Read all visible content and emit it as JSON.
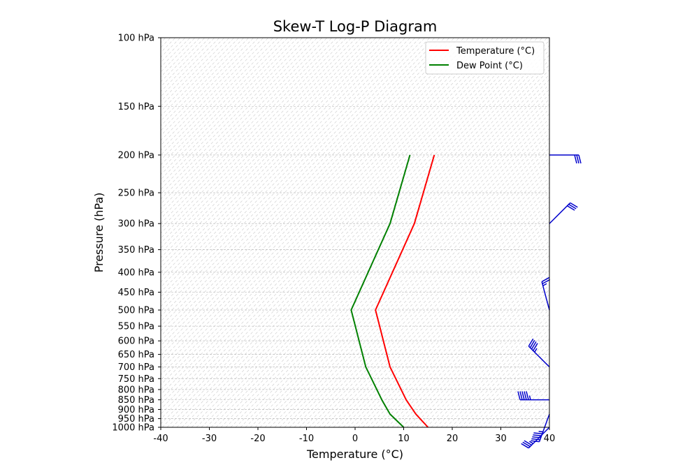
{
  "chart_data": {
    "type": "line",
    "title": "Skew-T Log-P Diagram",
    "xlabel": "Temperature (°C)",
    "ylabel": "Pressure (hPa)",
    "xlim": [
      -40,
      40
    ],
    "ylim": [
      1000,
      100
    ],
    "y_scale": "log",
    "grid": true,
    "x_ticks": [
      -40,
      -30,
      -20,
      -10,
      0,
      10,
      20,
      30,
      40
    ],
    "x_tick_labels": [
      "-40",
      "-30",
      "-20",
      "-10",
      "0",
      "10",
      "20",
      "30",
      "40"
    ],
    "y_ticks": [
      100,
      150,
      200,
      250,
      300,
      350,
      400,
      450,
      500,
      550,
      600,
      650,
      700,
      750,
      800,
      850,
      900,
      950,
      1000
    ],
    "y_tick_labels": [
      "100 hPa",
      "150 hPa",
      "200 hPa",
      "250 hPa",
      "300 hPa",
      "350 hPa",
      "400 hPa",
      "450 hPa",
      "500 hPa",
      "550 hPa",
      "600 hPa",
      "650 hPa",
      "700 hPa",
      "750 hPa",
      "800 hPa",
      "850 hPa",
      "900 hPa",
      "950 hPa",
      "1000 hPa"
    ],
    "legend_position": "top-right",
    "series": [
      {
        "name": "Temperature (°C)",
        "color": "#ff0000",
        "pressure": [
          1000,
          925,
          850,
          700,
          500,
          300,
          200
        ],
        "values": [
          15,
          12.5,
          10.5,
          7.2,
          4.2,
          12.2,
          16.3
        ]
      },
      {
        "name": "Dew Point (°C)",
        "color": "#008000",
        "pressure": [
          1000,
          925,
          850,
          700,
          500,
          300,
          200
        ],
        "values": [
          10,
          7.2,
          5.5,
          2.2,
          -0.8,
          7.2,
          11.3
        ]
      }
    ],
    "wind_barbs": {
      "color": "#0000cc",
      "pressure": [
        1000,
        925,
        850,
        700,
        500,
        300,
        200
      ],
      "direction_deg": [
        225,
        200,
        270,
        315,
        345,
        45,
        90
      ],
      "speed_kt": [
        35,
        55,
        55,
        45,
        25,
        30,
        30
      ]
    }
  }
}
